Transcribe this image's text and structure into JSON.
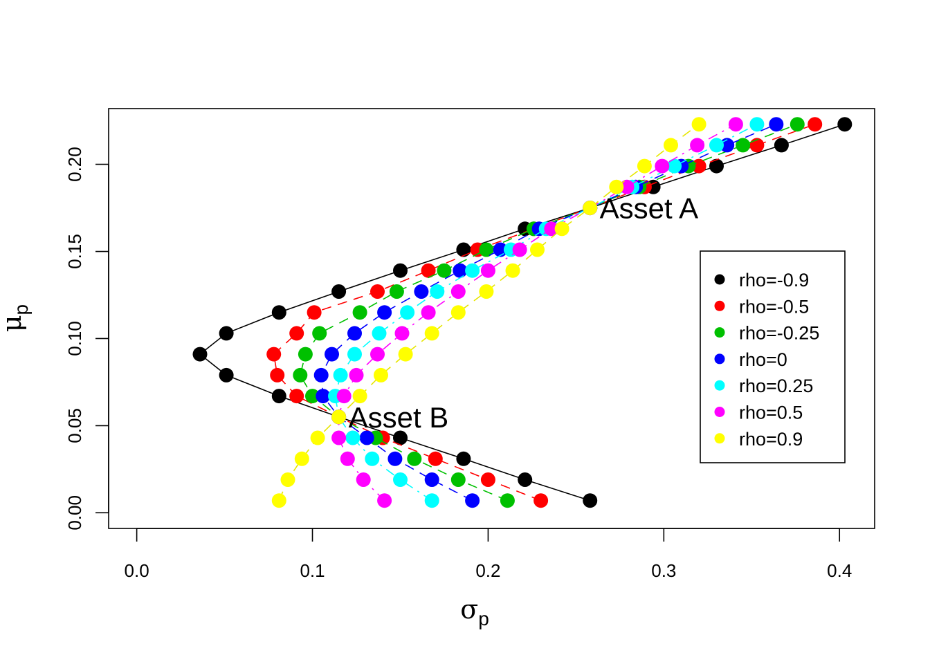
{
  "chart_data": {
    "type": "scatter",
    "title": "",
    "xlabel": "σ",
    "xlabel_sub": "p",
    "ylabel": "μ",
    "ylabel_sub": "p",
    "xlim": [
      -0.016,
      0.42
    ],
    "ylim": [
      -0.009,
      0.232
    ],
    "x_ticks": [
      0.0,
      0.1,
      0.2,
      0.3,
      0.4
    ],
    "x_tick_labels": [
      "0.0",
      "0.1",
      "0.2",
      "0.3",
      "0.4"
    ],
    "y_ticks": [
      0.0,
      0.05,
      0.1,
      0.15,
      0.2
    ],
    "y_tick_labels": [
      "0.00",
      "0.05",
      "0.10",
      "0.15",
      "0.20"
    ],
    "grid": false,
    "legend_position": "right",
    "mu": [
      0.007,
      0.019,
      0.031,
      0.043,
      0.055,
      0.067,
      0.079,
      0.091,
      0.103,
      0.115,
      0.127,
      0.139,
      0.151,
      0.163,
      0.175,
      0.187,
      0.199,
      0.211,
      0.223
    ],
    "series": [
      {
        "name": "rho=-0.9",
        "color": "#000000",
        "line": "solid",
        "sigma": [
          0.258,
          0.221,
          0.186,
          0.15,
          0.115,
          0.081,
          0.051,
          0.036,
          0.051,
          0.081,
          0.115,
          0.15,
          0.186,
          0.221,
          0.258,
          0.294,
          0.33,
          0.367,
          0.403
        ]
      },
      {
        "name": "rho=-0.5",
        "color": "#ff0000",
        "line": "dashed",
        "sigma": [
          0.23,
          0.2,
          0.17,
          0.14,
          0.115,
          0.091,
          0.08,
          0.078,
          0.091,
          0.101,
          0.137,
          0.166,
          0.194,
          0.226,
          0.258,
          0.289,
          0.32,
          0.353,
          0.386
        ]
      },
      {
        "name": "rho=-0.25",
        "color": "#00c000",
        "line": "dashed",
        "sigma": [
          0.211,
          0.183,
          0.158,
          0.136,
          0.115,
          0.1,
          0.093,
          0.096,
          0.104,
          0.127,
          0.148,
          0.175,
          0.199,
          0.226,
          0.258,
          0.286,
          0.314,
          0.345,
          0.376
        ]
      },
      {
        "name": "rho=0",
        "color": "#0000ff",
        "line": "dashed",
        "sigma": [
          0.191,
          0.168,
          0.147,
          0.131,
          0.115,
          0.106,
          0.105,
          0.111,
          0.124,
          0.141,
          0.162,
          0.184,
          0.207,
          0.229,
          0.258,
          0.284,
          0.31,
          0.336,
          0.364
        ]
      },
      {
        "name": "rho=0.25",
        "color": "#00ffff",
        "line": "dashdot",
        "sigma": [
          0.168,
          0.15,
          0.134,
          0.123,
          0.115,
          0.113,
          0.116,
          0.124,
          0.138,
          0.154,
          0.171,
          0.191,
          0.213,
          0.233,
          0.258,
          0.282,
          0.306,
          0.33,
          0.353
        ]
      },
      {
        "name": "rho=0.5",
        "color": "#ff00ff",
        "line": "dashdot",
        "sigma": [
          0.141,
          0.129,
          0.12,
          0.115,
          0.115,
          0.118,
          0.125,
          0.137,
          0.151,
          0.166,
          0.183,
          0.2,
          0.218,
          0.236,
          0.258,
          0.279,
          0.299,
          0.319,
          0.341
        ]
      },
      {
        "name": "rho=0.9",
        "color": "#ffff00",
        "line": "dashed",
        "sigma": [
          0.081,
          0.086,
          0.094,
          0.103,
          0.115,
          0.127,
          0.139,
          0.153,
          0.168,
          0.183,
          0.199,
          0.214,
          0.228,
          0.242,
          0.258,
          0.273,
          0.289,
          0.304,
          0.32
        ]
      }
    ],
    "annotations": [
      {
        "label": "Asset A",
        "sigma": 0.258,
        "mu": 0.175
      },
      {
        "label": "Asset B",
        "sigma": 0.115,
        "mu": 0.055
      }
    ]
  }
}
